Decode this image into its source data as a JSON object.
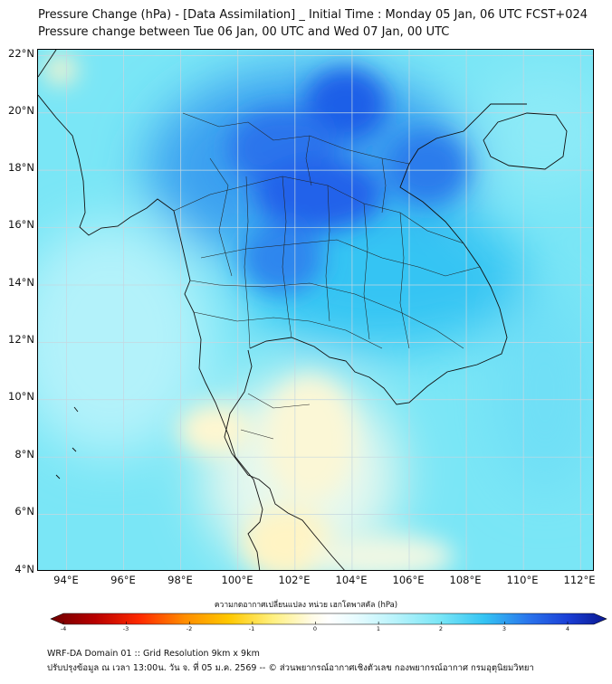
{
  "title_line1": "Pressure Change (hPa) - [Data Assimilation] _ Initial Time : Monday 05 Jan, 06 UTC FCST+024",
  "title_line2": "Pressure change between Tue 06 Jan, 00 UTC and Wed 07 Jan, 00 UTC",
  "lat_labels": [
    "22°N",
    "20°N",
    "18°N",
    "16°N",
    "14°N",
    "12°N",
    "10°N",
    "8°N",
    "6°N",
    "4°N"
  ],
  "lon_labels": [
    "94°E",
    "96°E",
    "98°E",
    "100°E",
    "102°E",
    "104°E",
    "106°E",
    "108°E",
    "110°E",
    "112°E"
  ],
  "colorbar": {
    "title": "ความกดอากาศเปลี่ยนแปลง หน่วย เฮกโตพาสคัล (hPa)",
    "ticks": [
      "-4",
      "-3",
      "-2",
      "-1",
      "0",
      "1",
      "2",
      "3",
      "4"
    ],
    "min": -4,
    "max": 4
  },
  "footer_line1": "WRF-DA Domain 01 :: Grid Resolution 9km x 9km",
  "footer_line2": "ปรับปรุงข้อมูล ณ เวลา 13:00น. วัน จ. ที่ 05 ม.ค. 2569 -- © ส่วนพยากรณ์อากาศเชิงตัวเลข กองพยากรณ์อากาศ กรมอุตุนิยมวิทยา",
  "map": {
    "lon_range": [
      93,
      112.5
    ],
    "lat_range": [
      4,
      22.2
    ]
  }
}
